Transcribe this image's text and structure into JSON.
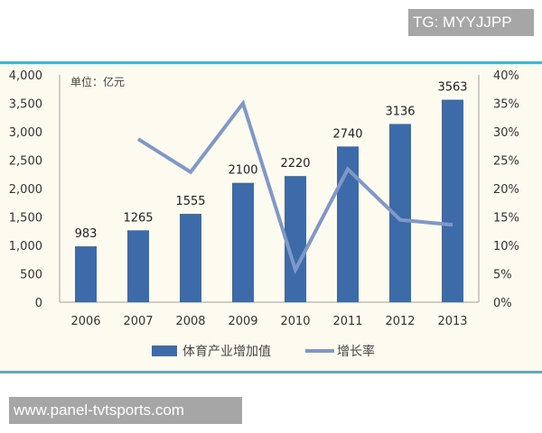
{
  "watermarks": {
    "top": "TG: MYYJJPP",
    "bottom": "www.panel-tvtsports.com"
  },
  "chart_data": {
    "type": "bar",
    "title": "",
    "unit_label": "单位：亿元",
    "categories": [
      "2006",
      "2007",
      "2008",
      "2009",
      "2010",
      "2011",
      "2012",
      "2013"
    ],
    "series": [
      {
        "name": "体育产业增加值",
        "type": "bar",
        "axis": "left",
        "color": "#3d6aa8",
        "values": [
          983,
          1265,
          1555,
          2100,
          2220,
          2740,
          3136,
          3563
        ],
        "data_labels": [
          "983",
          "1265",
          "1555",
          "2100",
          "2220",
          "2740",
          "3136",
          "3563"
        ]
      },
      {
        "name": "增长率",
        "type": "line",
        "axis": "right",
        "color": "#7f98c8",
        "values": [
          null,
          28.7,
          22.9,
          35.0,
          5.7,
          23.4,
          14.5,
          13.6
        ]
      }
    ],
    "left_axis": {
      "ylim": [
        0,
        4000
      ],
      "ticks": [
        "0",
        "500",
        "1,000",
        "1,500",
        "2,000",
        "2,500",
        "3,000",
        "3,500",
        "4,000"
      ]
    },
    "right_axis": {
      "ylim": [
        0,
        40
      ],
      "ticks": [
        "0%",
        "5%",
        "10%",
        "15%",
        "20%",
        "25%",
        "30%",
        "35%",
        "40%"
      ]
    },
    "xlabel": "",
    "ylabel": "",
    "grid": false,
    "legend_position": "bottom"
  },
  "legend": {
    "bar_label": "体育产业增加值",
    "line_label": "增长率"
  }
}
